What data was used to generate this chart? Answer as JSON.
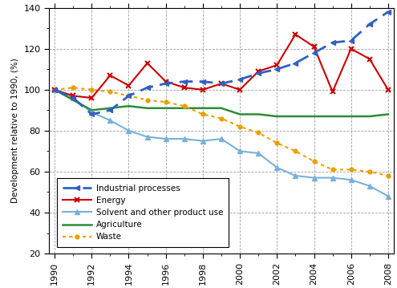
{
  "years": [
    1990,
    1991,
    1992,
    1993,
    1994,
    1995,
    1996,
    1997,
    1998,
    1999,
    2000,
    2001,
    2002,
    2003,
    2004,
    2005,
    2006,
    2007,
    2008
  ],
  "industrial_processes": [
    100,
    96,
    88,
    90,
    97,
    101,
    103,
    104,
    104,
    103,
    105,
    108,
    110,
    113,
    118,
    123,
    124,
    132,
    138
  ],
  "energy": [
    100,
    97,
    96,
    107,
    102,
    113,
    104,
    101,
    100,
    103,
    100,
    109,
    112,
    127,
    121,
    99,
    120,
    115,
    100
  ],
  "solvent": [
    100,
    96,
    89,
    85,
    80,
    77,
    76,
    76,
    75,
    76,
    70,
    69,
    62,
    58,
    57,
    57,
    56,
    53,
    48
  ],
  "agriculture": [
    100,
    95,
    90,
    91,
    92,
    91,
    91,
    91,
    91,
    91,
    88,
    88,
    87,
    87,
    87,
    87,
    87,
    87,
    88
  ],
  "waste": [
    100,
    101,
    100,
    99,
    97,
    95,
    94,
    92,
    88,
    86,
    82,
    79,
    74,
    70,
    65,
    61,
    61,
    60,
    58
  ],
  "ip_color": "#3060c0",
  "energy_color": "#cc0000",
  "solvent_color": "#7ab0d8",
  "agriculture_color": "#2e8b3a",
  "waste_color": "#e8a000",
  "ylabel": "Development relative to 1990, (%)",
  "ylim": [
    20,
    140
  ],
  "xlim_min": 1990,
  "xlim_max": 2008,
  "yticks": [
    20,
    40,
    60,
    80,
    100,
    120,
    140
  ],
  "xticks": [
    1990,
    1992,
    1994,
    1996,
    1998,
    2000,
    2002,
    2004,
    2006,
    2008
  ],
  "legend_labels": [
    "Industrial processes",
    "Energy",
    "Solvent and other product use",
    "Agriculture",
    "Waste"
  ]
}
